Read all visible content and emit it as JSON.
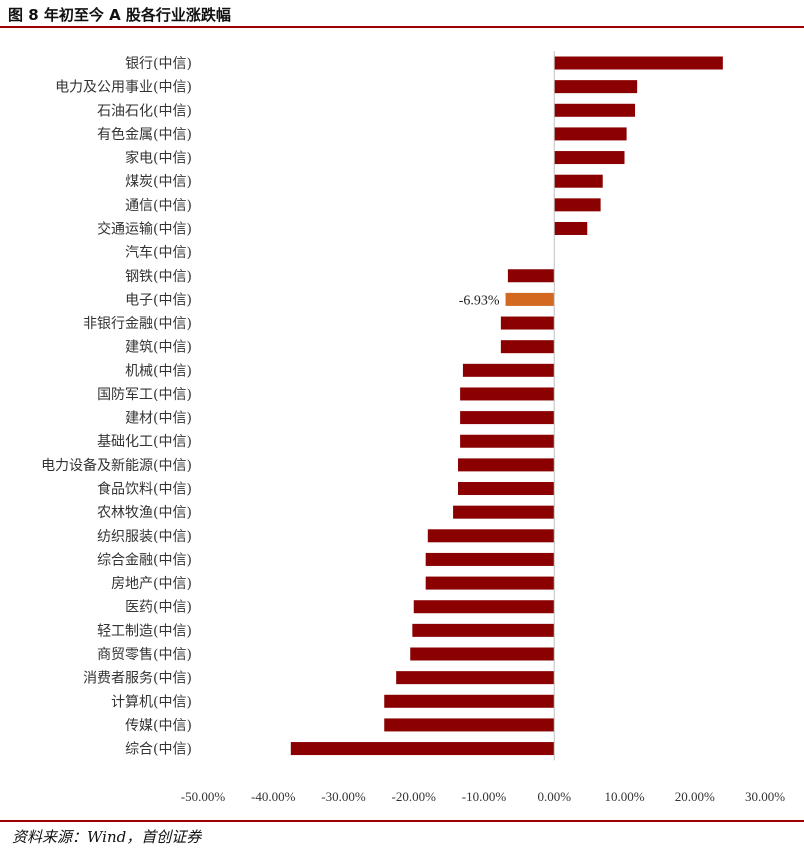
{
  "figure": {
    "title": "图 8 年初至今 A 股各行业涨跌幅",
    "source": "资料来源：Wind，首创证券"
  },
  "colors": {
    "bar": "#8b0000",
    "highlight": "#d2691e",
    "rule": "#a10000"
  },
  "chart_data": {
    "type": "bar",
    "orientation": "horizontal",
    "title": "图 8 年初至今 A 股各行业涨跌幅",
    "categories": [
      "银行(中信)",
      "电力及公用事业(中信)",
      "石油石化(中信)",
      "有色金属(中信)",
      "家电(中信)",
      "煤炭(中信)",
      "通信(中信)",
      "交通运输(中信)",
      "汽车(中信)",
      "钢铁(中信)",
      "电子(中信)",
      "非银行金融(中信)",
      "建筑(中信)",
      "机械(中信)",
      "国防军工(中信)",
      "建材(中信)",
      "基础化工(中信)",
      "电力设备及新能源(中信)",
      "食品饮料(中信)",
      "农林牧渔(中信)",
      "纺织服装(中信)",
      "综合金融(中信)",
      "房地产(中信)",
      "医药(中信)",
      "轻工制造(中信)",
      "商贸零售(中信)",
      "消费者服务(中信)",
      "计算机(中信)",
      "传媒(中信)",
      "综合(中信)"
    ],
    "values": [
      24.0,
      11.8,
      11.5,
      10.3,
      10.0,
      6.9,
      6.6,
      4.7,
      0.0,
      -6.6,
      -6.93,
      -7.6,
      -7.6,
      -13.0,
      -13.4,
      -13.4,
      -13.4,
      -13.7,
      -13.7,
      -14.4,
      -18.0,
      -18.3,
      -18.3,
      -20.0,
      -20.2,
      -20.5,
      -22.5,
      -24.2,
      -24.2,
      -37.5
    ],
    "highlight_index": 10,
    "data_labels": [
      {
        "index": 10,
        "text": "-6.93%"
      }
    ],
    "x_ticks": [
      "-50.00%",
      "-40.00%",
      "-30.00%",
      "-20.00%",
      "-10.00%",
      "0.00%",
      "10.00%",
      "20.00%",
      "30.00%"
    ],
    "xlim": [
      -50,
      30
    ],
    "grid": false,
    "legend": "none"
  }
}
